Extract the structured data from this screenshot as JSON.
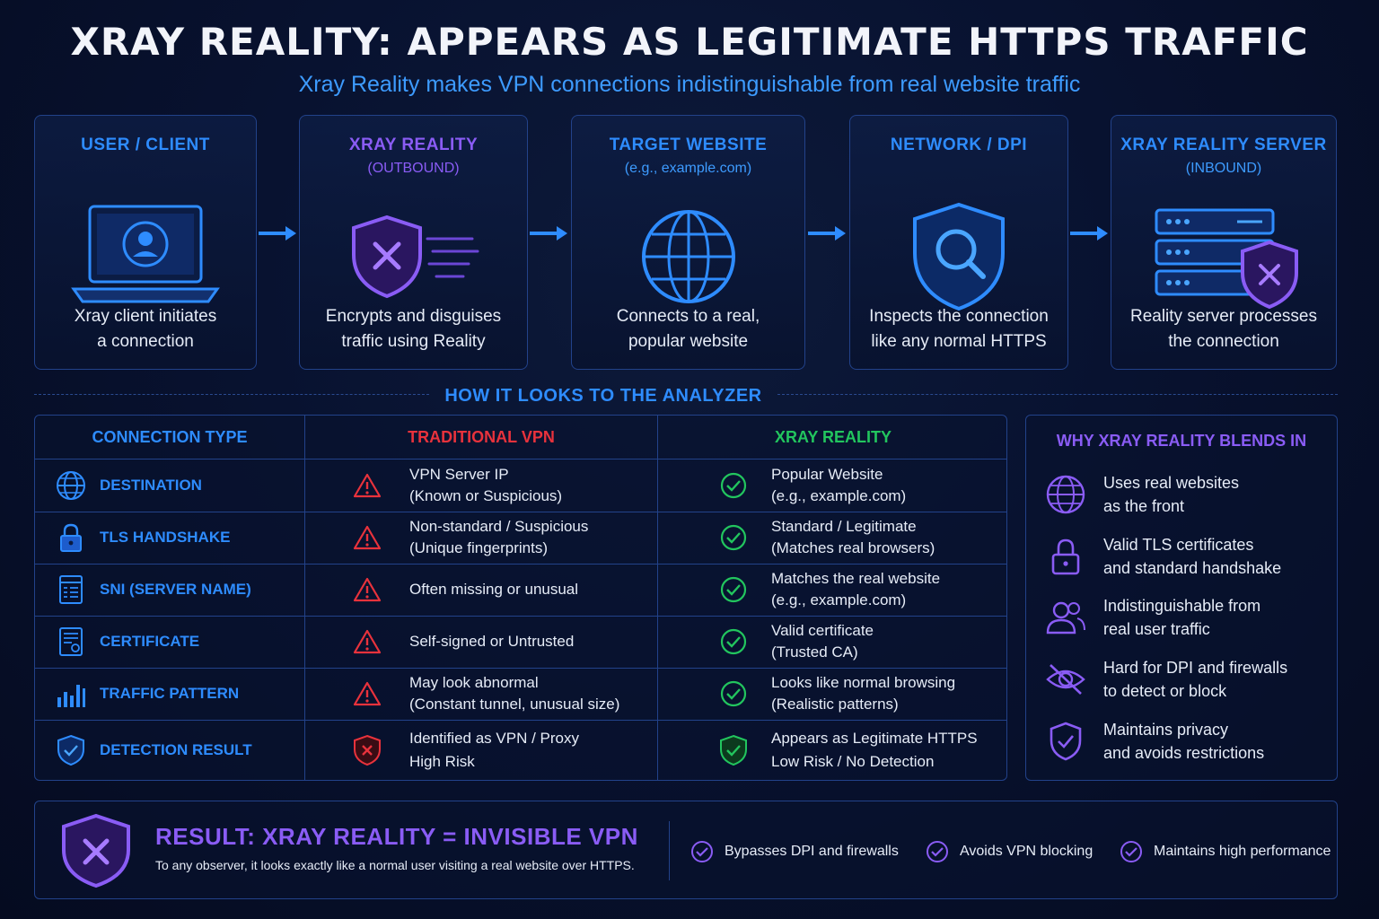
{
  "header": {
    "title": "XRAY REALITY: APPEARS AS LEGITIMATE HTTPS TRAFFIC",
    "subtitle": "Xray Reality makes VPN connections indistinguishable from real website traffic"
  },
  "flow": [
    {
      "title": "USER / CLIENT",
      "subtitle": "",
      "desc1": "Xray client initiates",
      "desc2": "a connection",
      "icon": "laptop-user-icon"
    },
    {
      "title": "XRAY REALITY",
      "subtitle": "(OUTBOUND)",
      "desc1": "Encrypts and disguises",
      "desc2": "traffic using Reality",
      "icon": "shield-x-icon"
    },
    {
      "title": "TARGET WEBSITE",
      "subtitle": "(e.g., example.com)",
      "desc1": "Connects to a real,",
      "desc2": "popular website",
      "icon": "globe-icon"
    },
    {
      "title": "NETWORK / DPI",
      "subtitle": "",
      "desc1": "Inspects the connection",
      "desc2": "like any normal HTTPS",
      "icon": "shield-search-icon"
    },
    {
      "title": "XRAY REALITY SERVER",
      "subtitle": "(INBOUND)",
      "desc1": "Reality server processes",
      "desc2": "the connection",
      "icon": "server-shield-icon"
    }
  ],
  "analyzer": {
    "section_title": "HOW IT LOOKS TO THE ANALYZER",
    "col_type": "CONNECTION TYPE",
    "col_vpn": "TRADITIONAL VPN",
    "col_xray": "XRAY REALITY",
    "rows": [
      {
        "label": "DESTINATION",
        "icon": "globe-icon",
        "vpn1": "VPN Server IP",
        "vpn2": "(Known or Suspicious)",
        "xray1": "Popular Website",
        "xray2": "(e.g., example.com)"
      },
      {
        "label": "TLS HANDSHAKE",
        "icon": "lock-icon",
        "vpn1": "Non-standard / Suspicious",
        "vpn2": "(Unique fingerprints)",
        "xray1": "Standard / Legitimate",
        "xray2": "(Matches real browsers)"
      },
      {
        "label": "SNI (SERVER NAME)",
        "icon": "document-list-icon",
        "vpn1": "Often missing or unusual",
        "vpn2": "",
        "xray1": "Matches the real website",
        "xray2": "(e.g., example.com)"
      },
      {
        "label": "CERTIFICATE",
        "icon": "certificate-icon",
        "vpn1": "Self-signed or Untrusted",
        "vpn2": "",
        "xray1": "Valid certificate",
        "xray2": "(Trusted CA)"
      },
      {
        "label": "TRAFFIC PATTERN",
        "icon": "bar-chart-icon",
        "vpn1": "May look abnormal",
        "vpn2": "(Constant tunnel, unusual size)",
        "xray1": "Looks like normal browsing",
        "xray2": "(Realistic patterns)"
      },
      {
        "label": "DETECTION RESULT",
        "icon": "shield-check-icon",
        "vpn1": "Identified as VPN / Proxy",
        "vpn2": "High Risk",
        "xray1": "Appears as Legitimate HTTPS",
        "xray2": "Low Risk / No Detection"
      }
    ]
  },
  "why": {
    "title": "WHY XRAY REALITY BLENDS IN",
    "items": [
      {
        "l1": "Uses real websites",
        "l2": "as the front",
        "icon": "globe-icon"
      },
      {
        "l1": "Valid TLS certificates",
        "l2": "and standard handshake",
        "icon": "lock-icon"
      },
      {
        "l1": "Indistinguishable from",
        "l2": "real user traffic",
        "icon": "users-icon"
      },
      {
        "l1": "Hard for DPI and firewalls",
        "l2": "to detect or block",
        "icon": "eye-off-icon"
      },
      {
        "l1": "Maintains privacy",
        "l2": "and avoids restrictions",
        "icon": "shield-check-icon"
      }
    ]
  },
  "result": {
    "title": "RESULT: XRAY REALITY = INVISIBLE VPN",
    "subtitle": "To any observer, it looks exactly like a normal user visiting a real website over HTTPS.",
    "bullets": [
      "Bypasses DPI and firewalls",
      "Avoids VPN blocking",
      "Maintains high performance"
    ]
  },
  "colors": {
    "accent_blue": "#2e8cff",
    "accent_purple": "#8a5cf5",
    "danger": "#e8323c",
    "success": "#22c55e",
    "background": "#081230"
  }
}
